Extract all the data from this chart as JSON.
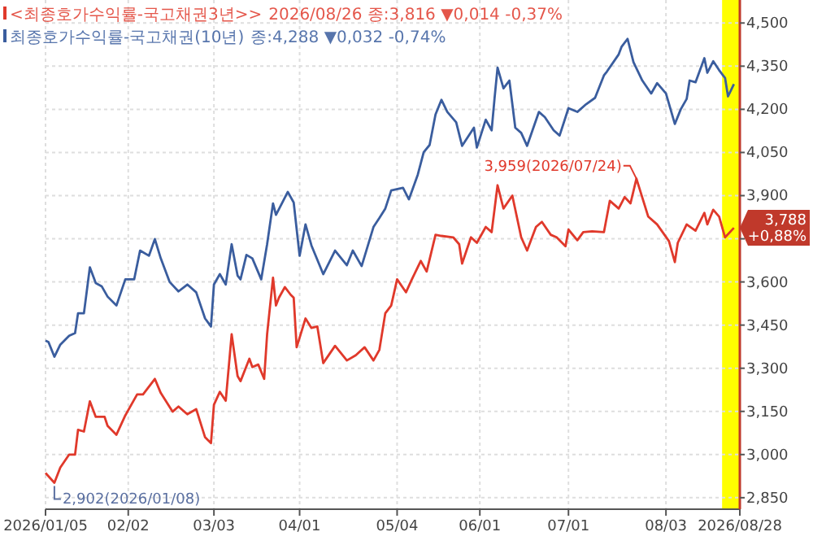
{
  "chart_data": {
    "type": "line",
    "xlim": [
      "2026-01-05",
      "2026-08-28"
    ],
    "xticks": [
      {
        "value": "2026-01-05",
        "label": "2026/01/05"
      },
      {
        "value": "2026-02-02",
        "label": "02/02"
      },
      {
        "value": "2026-03-03",
        "label": "03/03"
      },
      {
        "value": "2026-04-01",
        "label": "04/01"
      },
      {
        "value": "2026-05-04",
        "label": "05/04"
      },
      {
        "value": "2026-06-01",
        "label": "06/01"
      },
      {
        "value": "2026-07-01",
        "label": "07/01"
      },
      {
        "value": "2026-08-03",
        "label": "08/03"
      },
      {
        "value": "2026-08-28",
        "label": "2026/08/28"
      }
    ],
    "ylim": [
      2810,
      4580
    ],
    "yticks": [
      {
        "value": 2850,
        "label": "2,850"
      },
      {
        "value": 3000,
        "label": "3,000"
      },
      {
        "value": 3150,
        "label": "3,150"
      },
      {
        "value": 3300,
        "label": "3,300"
      },
      {
        "value": 3450,
        "label": "3,450"
      },
      {
        "value": 3600,
        "label": "3,600"
      },
      {
        "value": 3750,
        "label": null
      },
      {
        "value": 3900,
        "label": "3,900"
      },
      {
        "value": 4050,
        "label": "4,050"
      },
      {
        "value": 4200,
        "label": "4,200"
      },
      {
        "value": 4350,
        "label": "4,350"
      },
      {
        "value": 4500,
        "label": "4,500"
      }
    ],
    "grid": true,
    "legend": "top left",
    "line_style": "solid",
    "marker": "none",
    "bands": [
      {
        "axis": "x",
        "from": "2026-08-22",
        "to": "2026-08-28",
        "color": "#ffff00"
      }
    ],
    "series": [
      {
        "name": "<최종호가수익률-국고채권3년>>",
        "color": "#e0392b",
        "x": [
          "2026-01-05",
          "2026-01-08",
          "2026-01-10",
          "2026-01-13",
          "2026-01-15",
          "2026-01-16",
          "2026-01-18",
          "2026-01-20",
          "2026-01-22",
          "2026-01-25",
          "2026-01-26",
          "2026-01-29",
          "2026-02-01",
          "2026-02-05",
          "2026-02-07",
          "2026-02-11",
          "2026-02-13",
          "2026-02-17",
          "2026-02-19",
          "2026-02-22",
          "2026-02-25",
          "2026-02-28",
          "2026-03-02",
          "2026-03-03",
          "2026-03-05",
          "2026-03-07",
          "2026-03-09",
          "2026-03-11",
          "2026-03-12",
          "2026-03-15",
          "2026-03-16",
          "2026-03-18",
          "2026-03-20",
          "2026-03-21",
          "2026-03-23",
          "2026-03-24",
          "2026-03-25",
          "2026-03-27",
          "2026-03-29",
          "2026-03-30",
          "2026-03-31",
          "2026-04-03",
          "2026-04-05",
          "2026-04-07",
          "2026-04-09",
          "2026-04-13",
          "2026-04-17",
          "2026-04-20",
          "2026-04-23",
          "2026-04-26",
          "2026-04-28",
          "2026-04-30",
          "2026-05-02",
          "2026-05-04",
          "2026-05-07",
          "2026-05-09",
          "2026-05-12",
          "2026-05-14",
          "2026-05-17",
          "2026-05-19",
          "2026-05-23",
          "2026-05-25",
          "2026-05-26",
          "2026-05-29",
          "2026-05-31",
          "2026-06-03",
          "2026-06-05",
          "2026-06-07",
          "2026-06-09",
          "2026-06-12",
          "2026-06-15",
          "2026-06-17",
          "2026-06-20",
          "2026-06-22",
          "2026-06-25",
          "2026-06-27",
          "2026-06-30",
          "2026-07-01",
          "2026-07-04",
          "2026-07-06",
          "2026-07-09",
          "2026-07-13",
          "2026-07-15",
          "2026-07-18",
          "2026-07-20",
          "2026-07-22",
          "2026-07-24",
          "2026-07-28",
          "2026-07-31",
          "2026-08-04",
          "2026-08-06",
          "2026-08-07",
          "2026-08-10",
          "2026-08-13",
          "2026-08-16",
          "2026-08-17",
          "2026-08-19",
          "2026-08-21",
          "2026-08-23",
          "2026-08-26"
        ],
        "values": [
          2936,
          2902,
          2955,
          3000,
          3000,
          3086,
          3080,
          3185,
          3131,
          3131,
          3100,
          3069,
          3136,
          3209,
          3209,
          3263,
          3214,
          3149,
          3167,
          3140,
          3158,
          3060,
          3040,
          3173,
          3218,
          3187,
          3418,
          3273,
          3255,
          3333,
          3304,
          3313,
          3263,
          3418,
          3615,
          3518,
          3545,
          3582,
          3555,
          3545,
          3373,
          3473,
          3440,
          3445,
          3318,
          3378,
          3327,
          3345,
          3373,
          3327,
          3364,
          3491,
          3518,
          3609,
          3564,
          3609,
          3673,
          3636,
          3764,
          3760,
          3755,
          3731,
          3664,
          3755,
          3736,
          3791,
          3773,
          3936,
          3855,
          3900,
          3755,
          3709,
          3791,
          3809,
          3764,
          3755,
          3724,
          3782,
          3745,
          3773,
          3776,
          3773,
          3882,
          3855,
          3895,
          3873,
          3959,
          3827,
          3800,
          3742,
          3669,
          3736,
          3800,
          3778,
          3840,
          3800,
          3851,
          3827,
          3755,
          3788
        ]
      },
      {
        "name": "최종호가수익률-국고채권(10년)",
        "color": "#3a5d9e",
        "x": [
          "2026-01-05",
          "2026-01-06",
          "2026-01-08",
          "2026-01-10",
          "2026-01-13",
          "2026-01-15",
          "2026-01-16",
          "2026-01-18",
          "2026-01-20",
          "2026-01-22",
          "2026-01-24",
          "2026-01-26",
          "2026-01-29",
          "2026-02-01",
          "2026-02-04",
          "2026-02-06",
          "2026-02-09",
          "2026-02-11",
          "2026-02-13",
          "2026-02-16",
          "2026-02-19",
          "2026-02-22",
          "2026-02-25",
          "2026-02-28",
          "2026-03-02",
          "2026-03-03",
          "2026-03-05",
          "2026-03-07",
          "2026-03-09",
          "2026-03-11",
          "2026-03-12",
          "2026-03-14",
          "2026-03-16",
          "2026-03-19",
          "2026-03-21",
          "2026-03-23",
          "2026-03-24",
          "2026-03-28",
          "2026-03-30",
          "2026-04-01",
          "2026-04-03",
          "2026-04-05",
          "2026-04-09",
          "2026-04-13",
          "2026-04-17",
          "2026-04-19",
          "2026-04-22",
          "2026-04-26",
          "2026-04-28",
          "2026-04-30",
          "2026-05-02",
          "2026-05-06",
          "2026-05-08",
          "2026-05-11",
          "2026-05-13",
          "2026-05-15",
          "2026-05-17",
          "2026-05-19",
          "2026-05-21",
          "2026-05-24",
          "2026-05-26",
          "2026-05-30",
          "2026-05-31",
          "2026-06-03",
          "2026-06-05",
          "2026-06-06",
          "2026-06-07",
          "2026-06-09",
          "2026-06-11",
          "2026-06-13",
          "2026-06-15",
          "2026-06-17",
          "2026-06-21",
          "2026-06-23",
          "2026-06-26",
          "2026-06-28",
          "2026-07-01",
          "2026-07-04",
          "2026-07-07",
          "2026-07-10",
          "2026-07-13",
          "2026-07-14",
          "2026-07-18",
          "2026-07-19",
          "2026-07-21",
          "2026-07-23",
          "2026-07-26",
          "2026-07-29",
          "2026-07-31",
          "2026-08-03",
          "2026-08-06",
          "2026-08-08",
          "2026-08-10",
          "2026-08-11",
          "2026-08-13",
          "2026-08-16",
          "2026-08-17",
          "2026-08-19",
          "2026-08-21",
          "2026-08-23",
          "2026-08-24",
          "2026-08-26"
        ],
        "values": [
          3396,
          3391,
          3340,
          3382,
          3413,
          3422,
          3491,
          3491,
          3651,
          3596,
          3585,
          3549,
          3518,
          3609,
          3609,
          3709,
          3691,
          3749,
          3682,
          3600,
          3567,
          3591,
          3564,
          3473,
          3445,
          3591,
          3627,
          3591,
          3731,
          3622,
          3609,
          3694,
          3682,
          3609,
          3731,
          3873,
          3833,
          3913,
          3876,
          3691,
          3800,
          3727,
          3627,
          3709,
          3658,
          3709,
          3655,
          3791,
          3822,
          3855,
          3918,
          3927,
          3887,
          3973,
          4051,
          4076,
          4182,
          4233,
          4191,
          4155,
          4073,
          4136,
          4067,
          4164,
          4127,
          4240,
          4345,
          4273,
          4300,
          4136,
          4118,
          4073,
          4191,
          4173,
          4127,
          4109,
          4204,
          4191,
          4218,
          4240,
          4318,
          4331,
          4391,
          4418,
          4445,
          4364,
          4300,
          4255,
          4291,
          4255,
          4149,
          4200,
          4236,
          4300,
          4294,
          4378,
          4327,
          4367,
          4336,
          4309,
          4245,
          4288
        ]
      }
    ],
    "annotations": [
      "2026/08/26 종:3,816 ▼0,014 -0,37%",
      "종:4,288 ▼0,032 -0,74%",
      {
        "text": "3,959(2026/07/24)",
        "x": "2026-07-24",
        "y": 3959
      },
      {
        "text": "2,902(2026/01/08)",
        "x": "2026-01-08",
        "y": 2902
      },
      {
        "text": "3,788 +0,88%",
        "x": "2026-08-28",
        "y": 3788
      }
    ]
  }
}
